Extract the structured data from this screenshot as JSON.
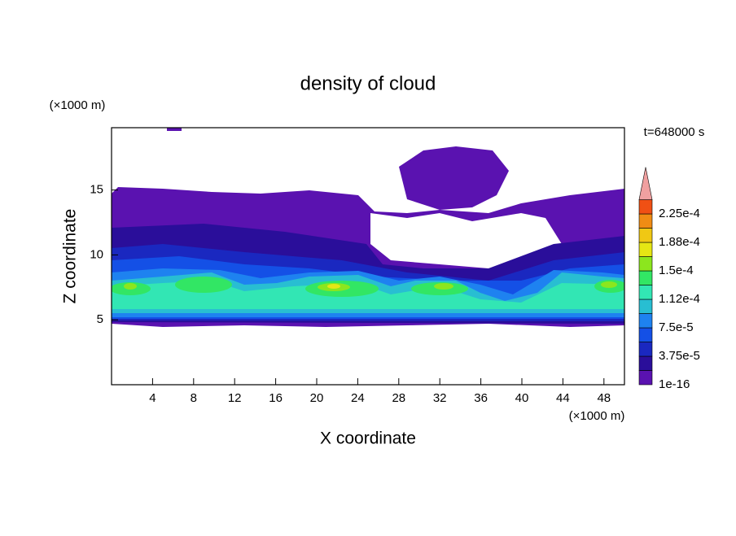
{
  "chart_data": {
    "type": "contour",
    "title": "density of cloud",
    "x_label": "X coordinate",
    "y_label": "Z coordinate",
    "x_unit": "(×1000 m)",
    "y_unit": "(×1000 m)",
    "annotation": "t=648000 s",
    "xlim": [
      0,
      50
    ],
    "xticks": [
      4,
      8,
      12,
      16,
      20,
      24,
      28,
      32,
      36,
      40,
      44,
      48
    ],
    "ylim": [
      0,
      19.8
    ],
    "yticks": [
      5,
      10,
      15
    ],
    "colorbar": {
      "labels": [
        "1e-16",
        "3.75e-5",
        "7.5e-5",
        "1.12e-4",
        "1.5e-4",
        "1.88e-4",
        "2.25e-4"
      ],
      "colors": [
        "#5a12b0",
        "#2a0e9a",
        "#1a28c0",
        "#1450e6",
        "#1e82f0",
        "#28bed2",
        "#32e6b4",
        "#32e664",
        "#8ce61e",
        "#e6e614",
        "#f0c814",
        "#f08c14",
        "#f05014",
        "#f0a0a0"
      ]
    }
  }
}
